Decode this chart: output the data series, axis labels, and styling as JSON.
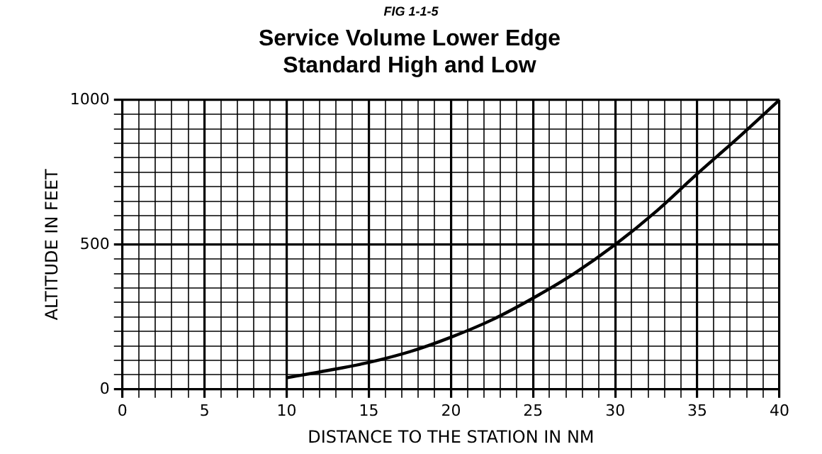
{
  "chart_data": {
    "type": "line",
    "title": "Service Volume Lower Edge\nStandard High and Low",
    "annotations": [
      "FIG 1-1-5"
    ],
    "xlabel": "DISTANCE TO THE STATION IN NM",
    "ylabel": "ALTITUDE IN FEET",
    "x": [
      10,
      12.5,
      15,
      17.5,
      20,
      22.5,
      25,
      27.5,
      30,
      32.5,
      35,
      37.5,
      40
    ],
    "series": [
      {
        "color": "#000000",
        "values": [
          40,
          65,
          93,
          130,
          180,
          240,
          315,
          400,
          500,
          615,
          745,
          870,
          1000
        ]
      }
    ],
    "xlim": [
      0,
      40
    ],
    "ylim": [
      0,
      1000
    ],
    "xticks": [
      0,
      {
        "value": 1,
        "label": null
      },
      {
        "value": 2,
        "label": null
      },
      {
        "value": 3,
        "label": null
      },
      {
        "value": 4,
        "label": null
      },
      5,
      {
        "value": 6,
        "label": null
      },
      {
        "value": 7,
        "label": null
      },
      {
        "value": 8,
        "label": null
      },
      {
        "value": 9,
        "label": null
      },
      10,
      {
        "value": 11,
        "label": null
      },
      {
        "value": 12,
        "label": null
      },
      {
        "value": 13,
        "label": null
      },
      {
        "value": 14,
        "label": null
      },
      15,
      {
        "value": 16,
        "label": null
      },
      {
        "value": 17,
        "label": null
      },
      {
        "value": 18,
        "label": null
      },
      {
        "value": 19,
        "label": null
      },
      20,
      {
        "value": 21,
        "label": null
      },
      {
        "value": 22,
        "label": null
      },
      {
        "value": 23,
        "label": null
      },
      {
        "value": 24,
        "label": null
      },
      25,
      {
        "value": 26,
        "label": null
      },
      {
        "value": 27,
        "label": null
      },
      {
        "value": 28,
        "label": null
      },
      {
        "value": 29,
        "label": null
      },
      30,
      {
        "value": 31,
        "label": null
      },
      {
        "value": 32,
        "label": null
      },
      {
        "value": 33,
        "label": null
      },
      {
        "value": 34,
        "label": null
      },
      35,
      {
        "value": 36,
        "label": null
      },
      {
        "value": 37,
        "label": null
      },
      {
        "value": 38,
        "label": null
      },
      {
        "value": 39,
        "label": null
      },
      40
    ],
    "yticks": [
      0,
      {
        "value": 50,
        "label": null
      },
      {
        "value": 100,
        "label": null
      },
      {
        "value": 150,
        "label": null
      },
      {
        "value": 200,
        "label": null
      },
      {
        "value": 250,
        "label": null
      },
      {
        "value": 300,
        "label": null
      },
      {
        "value": 350,
        "label": null
      },
      {
        "value": 400,
        "label": null
      },
      {
        "value": 450,
        "label": null
      },
      500,
      {
        "value": 550,
        "label": null
      },
      {
        "value": 600,
        "label": null
      },
      {
        "value": 650,
        "label": null
      },
      {
        "value": 700,
        "label": null
      },
      {
        "value": 750,
        "label": null
      },
      {
        "value": 800,
        "label": null
      },
      {
        "value": 850,
        "label": null
      },
      {
        "value": 900,
        "label": null
      },
      {
        "value": 950,
        "label": null
      },
      1000
    ],
    "grid": true,
    "legend": false,
    "marker": "none",
    "line_style": "solid"
  }
}
